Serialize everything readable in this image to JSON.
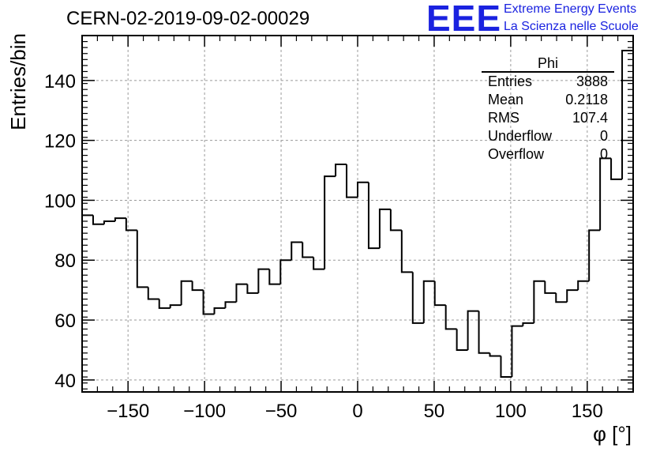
{
  "header": {
    "title": "CERN-02-2019-09-02-00029",
    "logo_text": "EEE",
    "logo_line1": "Extreme Energy Events",
    "logo_line2": "La Scienza nelle Scuole"
  },
  "stats": {
    "name": "Phi",
    "rows": [
      {
        "label": "Entries",
        "value": "3888"
      },
      {
        "label": "Mean",
        "value": "0.2118"
      },
      {
        "label": "RMS",
        "value": "107.4"
      },
      {
        "label": "Underflow",
        "value": "0"
      },
      {
        "label": "Overflow",
        "value": "0"
      }
    ]
  },
  "chart_data": {
    "type": "bar",
    "style": "step-histogram",
    "xlabel": "φ [°]",
    "ylabel": "Entries/bin",
    "xlim": [
      -180,
      180
    ],
    "ylim": [
      36,
      155
    ],
    "bin_width": 7.2,
    "xticks": [
      -150,
      -100,
      -50,
      0,
      50,
      100,
      150
    ],
    "xtick_labels": [
      "−150",
      "−100",
      "−50",
      "0",
      "50",
      "100",
      "150"
    ],
    "yticks": [
      40,
      60,
      80,
      100,
      120,
      140
    ],
    "grid": true,
    "values": [
      95,
      92,
      93,
      94,
      90,
      71,
      67,
      64,
      65,
      73,
      70,
      62,
      64,
      66,
      72,
      69,
      77,
      72,
      80,
      86,
      81,
      77,
      108,
      112,
      101,
      106,
      84,
      97,
      90,
      76,
      59,
      73,
      65,
      57,
      50,
      63,
      49,
      48,
      41,
      58,
      59,
      73,
      69,
      66,
      70,
      73,
      90,
      114,
      107,
      150
    ]
  }
}
